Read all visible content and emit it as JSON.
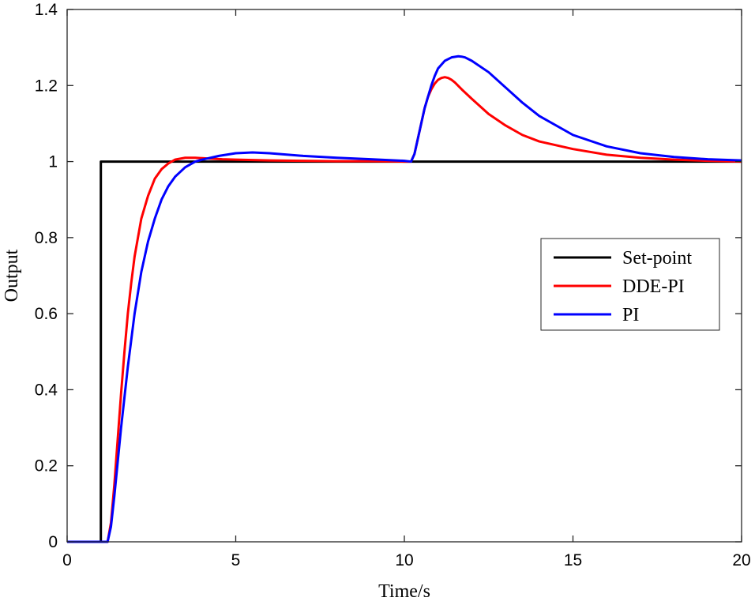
{
  "chart_data": {
    "type": "line",
    "title": "",
    "xlabel": "Time/s",
    "ylabel": "Output",
    "xlim": [
      0,
      20
    ],
    "ylim": [
      0,
      1.4
    ],
    "xticks": [
      0,
      5,
      10,
      15,
      20
    ],
    "yticks": [
      0,
      0.2,
      0.4,
      0.6,
      0.8,
      1,
      1.2,
      1.4
    ],
    "xtick_labels": [
      "0",
      "5",
      "10",
      "15",
      "20"
    ],
    "ytick_labels": [
      "0",
      "0.2",
      "0.4",
      "0.6",
      "0.8",
      "1",
      "1.2",
      "1.4"
    ],
    "grid": false,
    "legend_position": "center-right",
    "series": [
      {
        "name": "Set-point",
        "color": "#000000",
        "x": [
          0,
          0.9,
          0.9,
          1.0,
          1.0,
          20
        ],
        "y": [
          0,
          0,
          0.0,
          0.0,
          1.0,
          1.0
        ]
      },
      {
        "name": "DDE-PI",
        "color": "#ff0000",
        "x": [
          0,
          1.2,
          1.3,
          1.4,
          1.5,
          1.6,
          1.7,
          1.8,
          1.9,
          2.0,
          2.2,
          2.4,
          2.6,
          2.8,
          3.0,
          3.2,
          3.5,
          3.8,
          4.2,
          4.6,
          5.0,
          6.0,
          7.0,
          8.0,
          9.0,
          10.0,
          10.2,
          10.3,
          10.4,
          10.5,
          10.6,
          10.7,
          10.8,
          10.9,
          11.0,
          11.1,
          11.2,
          11.3,
          11.4,
          11.5,
          11.7,
          12.0,
          12.5,
          13.0,
          13.5,
          14.0,
          15.0,
          16.0,
          17.0,
          18.0,
          19.0,
          20.0
        ],
        "y": [
          0,
          0,
          0.05,
          0.15,
          0.27,
          0.39,
          0.5,
          0.6,
          0.68,
          0.75,
          0.85,
          0.91,
          0.955,
          0.98,
          0.995,
          1.005,
          1.01,
          1.01,
          1.008,
          1.006,
          1.005,
          1.003,
          1.002,
          1.001,
          1.001,
          1.0,
          1.0,
          1.02,
          1.06,
          1.1,
          1.14,
          1.17,
          1.19,
          1.205,
          1.215,
          1.22,
          1.222,
          1.22,
          1.215,
          1.208,
          1.19,
          1.165,
          1.125,
          1.095,
          1.07,
          1.053,
          1.033,
          1.018,
          1.01,
          1.005,
          1.002,
          1.0
        ]
      },
      {
        "name": "PI",
        "color": "#0000ff",
        "x": [
          0,
          1.2,
          1.3,
          1.4,
          1.5,
          1.6,
          1.7,
          1.8,
          2.0,
          2.2,
          2.4,
          2.6,
          2.8,
          3.0,
          3.2,
          3.5,
          3.8,
          4.0,
          4.5,
          5.0,
          5.5,
          6.0,
          7.0,
          8.0,
          9.0,
          10.0,
          10.2,
          10.3,
          10.4,
          10.5,
          10.6,
          10.7,
          10.8,
          10.9,
          11.0,
          11.2,
          11.4,
          11.6,
          11.7,
          11.8,
          12.0,
          12.5,
          13.0,
          13.5,
          14.0,
          15.0,
          16.0,
          17.0,
          18.0,
          19.0,
          20.0
        ],
        "y": [
          0,
          0,
          0.04,
          0.12,
          0.21,
          0.3,
          0.38,
          0.46,
          0.6,
          0.71,
          0.79,
          0.85,
          0.9,
          0.935,
          0.96,
          0.985,
          1.0,
          1.005,
          1.015,
          1.022,
          1.024,
          1.022,
          1.015,
          1.01,
          1.006,
          1.002,
          1.0,
          1.02,
          1.06,
          1.1,
          1.14,
          1.17,
          1.2,
          1.225,
          1.245,
          1.265,
          1.274,
          1.277,
          1.276,
          1.274,
          1.265,
          1.235,
          1.195,
          1.155,
          1.12,
          1.07,
          1.04,
          1.022,
          1.012,
          1.006,
          1.003
        ]
      }
    ]
  }
}
